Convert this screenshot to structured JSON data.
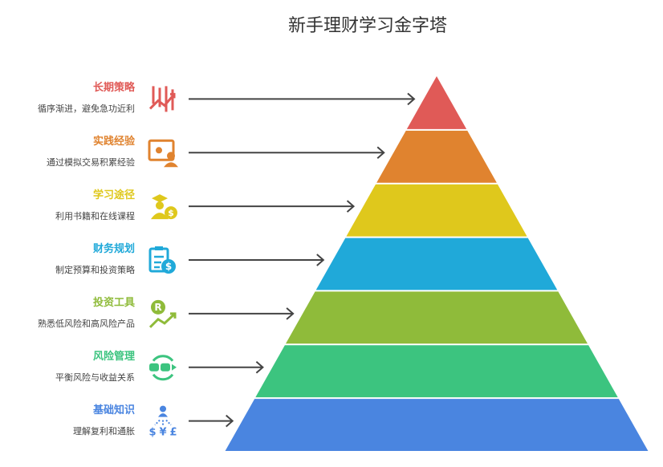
{
  "title": "新手理财学习金字塔",
  "levels": [
    {
      "label": "长期策略",
      "desc": "循序渐进，避免急功近利",
      "color": "#e05a57",
      "icon": "growth-chart-icon"
    },
    {
      "label": "实践经验",
      "desc": "通过模拟交易积累经验",
      "color": "#e0832f",
      "icon": "monitor-user-icon"
    },
    {
      "label": "学习途径",
      "desc": "利用书籍和在线课程",
      "color": "#dfc81c",
      "icon": "graduate-coin-icon"
    },
    {
      "label": "财务规划",
      "desc": "制定预算和投资策略",
      "color": "#20a9d9",
      "icon": "clipboard-dollar-icon"
    },
    {
      "label": "投资工具",
      "desc": "熟悉低风险和高风险产品",
      "color": "#8fbb3a",
      "icon": "rupee-trend-icon"
    },
    {
      "label": "风险管理",
      "desc": "平衡风险与收益关系",
      "color": "#3cc47f",
      "icon": "exchange-cycle-icon"
    },
    {
      "label": "基础知识",
      "desc": "理解复利和通胀",
      "color": "#4a85e0",
      "icon": "person-currency-icon"
    }
  ]
}
